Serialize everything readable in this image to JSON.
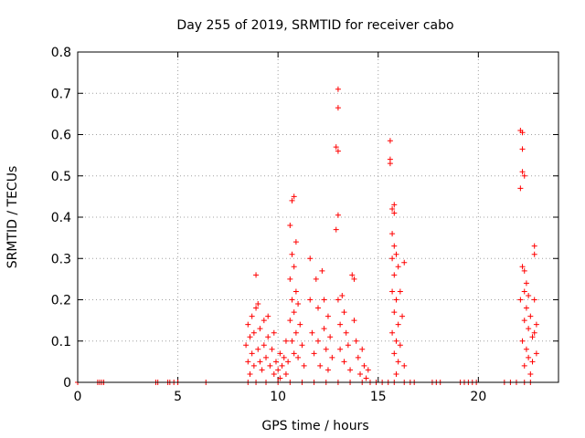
{
  "chart_data": {
    "type": "scatter",
    "title": "Day 255 of 2019, SRMTID for receiver cabo",
    "xlabel": "GPS time / hours",
    "ylabel": "SRMTID / TECUs",
    "xlim": [
      0,
      24
    ],
    "ylim": [
      0,
      0.8
    ],
    "xticks": [
      0,
      5,
      10,
      15,
      20
    ],
    "xtick_labels": [
      "0",
      "5",
      "10",
      "15",
      "20"
    ],
    "yticks": [
      0,
      0.1,
      0.2,
      0.3,
      0.4,
      0.5,
      0.6,
      0.7,
      0.8
    ],
    "ytick_labels": [
      "0",
      "0.1",
      "0.2",
      "0.3",
      "0.4",
      "0.5",
      "0.6",
      "0.7",
      "0.8"
    ],
    "grid": true,
    "marker": "+",
    "color": "#ff0000",
    "series": [
      {
        "name": "SRMTID",
        "points": [
          [
            0.0,
            0.0
          ],
          [
            1.0,
            0.0
          ],
          [
            1.1,
            0.0
          ],
          [
            1.2,
            0.0
          ],
          [
            1.3,
            0.0
          ],
          [
            3.9,
            0.0
          ],
          [
            4.0,
            0.0
          ],
          [
            4.5,
            0.0
          ],
          [
            4.6,
            0.0
          ],
          [
            4.8,
            0.0
          ],
          [
            5.0,
            0.0
          ],
          [
            6.4,
            0.0
          ],
          [
            8.5,
            0.0
          ],
          [
            8.9,
            0.0
          ],
          [
            9.4,
            0.0
          ],
          [
            10.0,
            0.0
          ],
          [
            10.6,
            0.0
          ],
          [
            11.2,
            0.0
          ],
          [
            11.8,
            0.0
          ],
          [
            12.4,
            0.0
          ],
          [
            13.0,
            0.0
          ],
          [
            13.6,
            0.0
          ],
          [
            14.2,
            0.0
          ],
          [
            14.6,
            0.0
          ],
          [
            14.9,
            0.0
          ],
          [
            15.2,
            0.0
          ],
          [
            15.5,
            0.0
          ],
          [
            15.8,
            0.0
          ],
          [
            16.3,
            0.0
          ],
          [
            16.6,
            0.0
          ],
          [
            16.8,
            0.0
          ],
          [
            17.7,
            0.0
          ],
          [
            17.9,
            0.0
          ],
          [
            18.1,
            0.0
          ],
          [
            19.1,
            0.0
          ],
          [
            19.3,
            0.0
          ],
          [
            19.5,
            0.0
          ],
          [
            19.7,
            0.0
          ],
          [
            19.9,
            0.0
          ],
          [
            21.3,
            0.0
          ],
          [
            21.6,
            0.0
          ],
          [
            21.9,
            0.0
          ],
          [
            22.3,
            0.0
          ],
          [
            22.6,
            0.0
          ],
          [
            8.4,
            0.09
          ],
          [
            8.5,
            0.05
          ],
          [
            8.5,
            0.14
          ],
          [
            8.6,
            0.02
          ],
          [
            8.6,
            0.11
          ],
          [
            8.7,
            0.07
          ],
          [
            8.7,
            0.16
          ],
          [
            8.8,
            0.04
          ],
          [
            8.8,
            0.12
          ],
          [
            8.9,
            0.18
          ],
          [
            8.9,
            0.26
          ],
          [
            9.0,
            0.08
          ],
          [
            9.0,
            0.19
          ],
          [
            9.1,
            0.05
          ],
          [
            9.1,
            0.13
          ],
          [
            9.2,
            0.03
          ],
          [
            9.3,
            0.09
          ],
          [
            9.3,
            0.15
          ],
          [
            9.4,
            0.06
          ],
          [
            9.5,
            0.16
          ],
          [
            9.5,
            0.11
          ],
          [
            9.6,
            0.04
          ],
          [
            9.7,
            0.08
          ],
          [
            9.8,
            0.02
          ],
          [
            9.8,
            0.12
          ],
          [
            9.9,
            0.05
          ],
          [
            10.0,
            0.03
          ],
          [
            10.1,
            0.07
          ],
          [
            10.1,
            0.01
          ],
          [
            10.2,
            0.04
          ],
          [
            10.3,
            0.06
          ],
          [
            10.4,
            0.02
          ],
          [
            10.4,
            0.1
          ],
          [
            10.5,
            0.05
          ],
          [
            10.6,
            0.38
          ],
          [
            10.6,
            0.25
          ],
          [
            10.6,
            0.15
          ],
          [
            10.7,
            0.44
          ],
          [
            10.7,
            0.31
          ],
          [
            10.7,
            0.2
          ],
          [
            10.7,
            0.1
          ],
          [
            10.8,
            0.45
          ],
          [
            10.8,
            0.28
          ],
          [
            10.8,
            0.17
          ],
          [
            10.8,
            0.07
          ],
          [
            10.9,
            0.34
          ],
          [
            10.9,
            0.22
          ],
          [
            10.9,
            0.12
          ],
          [
            11.0,
            0.19
          ],
          [
            11.0,
            0.06
          ],
          [
            11.1,
            0.14
          ],
          [
            11.2,
            0.09
          ],
          [
            11.3,
            0.04
          ],
          [
            11.6,
            0.3
          ],
          [
            11.6,
            0.2
          ],
          [
            11.7,
            0.12
          ],
          [
            11.8,
            0.07
          ],
          [
            11.9,
            0.25
          ],
          [
            12.0,
            0.18
          ],
          [
            12.0,
            0.1
          ],
          [
            12.1,
            0.04
          ],
          [
            12.2,
            0.27
          ],
          [
            12.3,
            0.2
          ],
          [
            12.3,
            0.13
          ],
          [
            12.4,
            0.08
          ],
          [
            12.5,
            0.16
          ],
          [
            12.5,
            0.03
          ],
          [
            12.6,
            0.11
          ],
          [
            12.7,
            0.06
          ],
          [
            12.9,
            0.37
          ],
          [
            12.9,
            0.57
          ],
          [
            13.0,
            0.71
          ],
          [
            13.0,
            0.665
          ],
          [
            13.0,
            0.56
          ],
          [
            13.0,
            0.405
          ],
          [
            13.0,
            0.2
          ],
          [
            13.1,
            0.14
          ],
          [
            13.1,
            0.08
          ],
          [
            13.2,
            0.21
          ],
          [
            13.3,
            0.17
          ],
          [
            13.3,
            0.05
          ],
          [
            13.4,
            0.12
          ],
          [
            13.5,
            0.09
          ],
          [
            13.6,
            0.03
          ],
          [
            13.7,
            0.26
          ],
          [
            13.8,
            0.25
          ],
          [
            13.8,
            0.15
          ],
          [
            13.9,
            0.1
          ],
          [
            14.0,
            0.06
          ],
          [
            14.1,
            0.02
          ],
          [
            14.2,
            0.08
          ],
          [
            14.3,
            0.04
          ],
          [
            14.4,
            0.01
          ],
          [
            14.5,
            0.03
          ],
          [
            15.6,
            0.585
          ],
          [
            15.6,
            0.54
          ],
          [
            15.6,
            0.53
          ],
          [
            15.7,
            0.42
          ],
          [
            15.7,
            0.36
          ],
          [
            15.7,
            0.3
          ],
          [
            15.7,
            0.22
          ],
          [
            15.7,
            0.12
          ],
          [
            15.8,
            0.43
          ],
          [
            15.8,
            0.41
          ],
          [
            15.8,
            0.33
          ],
          [
            15.8,
            0.26
          ],
          [
            15.8,
            0.17
          ],
          [
            15.8,
            0.07
          ],
          [
            15.9,
            0.31
          ],
          [
            15.9,
            0.2
          ],
          [
            15.9,
            0.1
          ],
          [
            15.9,
            0.02
          ],
          [
            16.0,
            0.28
          ],
          [
            16.0,
            0.14
          ],
          [
            16.0,
            0.05
          ],
          [
            16.1,
            0.22
          ],
          [
            16.1,
            0.09
          ],
          [
            16.2,
            0.16
          ],
          [
            16.3,
            0.29
          ],
          [
            16.3,
            0.04
          ],
          [
            22.1,
            0.61
          ],
          [
            22.1,
            0.47
          ],
          [
            22.1,
            0.2
          ],
          [
            22.2,
            0.605
          ],
          [
            22.2,
            0.565
          ],
          [
            22.2,
            0.51
          ],
          [
            22.2,
            0.28
          ],
          [
            22.2,
            0.1
          ],
          [
            22.3,
            0.5
          ],
          [
            22.3,
            0.27
          ],
          [
            22.3,
            0.22
          ],
          [
            22.3,
            0.15
          ],
          [
            22.3,
            0.04
          ],
          [
            22.4,
            0.24
          ],
          [
            22.4,
            0.18
          ],
          [
            22.4,
            0.08
          ],
          [
            22.5,
            0.21
          ],
          [
            22.5,
            0.13
          ],
          [
            22.5,
            0.06
          ],
          [
            22.6,
            0.16
          ],
          [
            22.6,
            0.02
          ],
          [
            22.7,
            0.11
          ],
          [
            22.7,
            0.05
          ],
          [
            22.8,
            0.33
          ],
          [
            22.8,
            0.31
          ],
          [
            22.8,
            0.2
          ],
          [
            22.8,
            0.12
          ],
          [
            22.9,
            0.14
          ],
          [
            22.9,
            0.07
          ]
        ]
      }
    ]
  }
}
